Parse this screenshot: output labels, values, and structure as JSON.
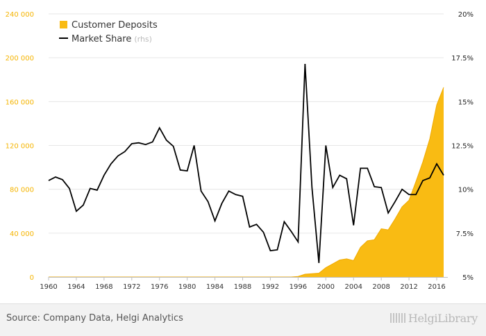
{
  "chart_data": {
    "type": "area+line",
    "title": "",
    "xlabel": "",
    "ylabel": "",
    "x": [
      1960,
      1961,
      1962,
      1963,
      1964,
      1965,
      1966,
      1967,
      1968,
      1969,
      1970,
      1971,
      1972,
      1973,
      1974,
      1975,
      1976,
      1977,
      1978,
      1979,
      1980,
      1981,
      1982,
      1983,
      1984,
      1985,
      1986,
      1987,
      1988,
      1989,
      1990,
      1991,
      1992,
      1993,
      1994,
      1995,
      1996,
      1997,
      1998,
      1999,
      2000,
      2001,
      2002,
      2003,
      2004,
      2005,
      2006,
      2007,
      2008,
      2009,
      2010,
      2011,
      2012,
      2013,
      2014,
      2015,
      2016,
      2017
    ],
    "x_ticks": [
      "1960",
      "1964",
      "1968",
      "1972",
      "1976",
      "1980",
      "1984",
      "1988",
      "1992",
      "1996",
      "2000",
      "2004",
      "2008",
      "2012",
      "2016"
    ],
    "y_left": {
      "ticks": [
        "0",
        "40 000",
        "80 000",
        "120 000",
        "160 000",
        "200 000",
        "240 000"
      ],
      "range": [
        0,
        240000
      ],
      "color": "#f5b400"
    },
    "y_right": {
      "ticks": [
        "5%",
        "7.5%",
        "10%",
        "12.5%",
        "15%",
        "17.5%",
        "20%"
      ],
      "range": [
        5,
        20
      ],
      "unit": "%"
    },
    "series": [
      {
        "name": "Customer Deposits",
        "type": "area",
        "axis": "left",
        "color": "#f9bb13",
        "values": [
          0,
          0,
          0,
          0,
          0,
          0,
          0,
          0,
          0,
          0,
          0,
          0,
          0,
          0,
          0,
          0,
          0,
          0,
          0,
          0,
          0,
          0,
          0,
          0,
          0,
          0,
          0,
          0,
          0,
          0,
          0,
          0,
          0,
          0,
          0,
          0,
          500,
          2500,
          3000,
          3500,
          8500,
          12000,
          15500,
          16500,
          15000,
          27000,
          33000,
          34000,
          44000,
          43000,
          53000,
          64000,
          70000,
          87000,
          105000,
          126000,
          157000,
          173000
        ]
      },
      {
        "name": "Market Share",
        "legend_suffix": "(rhs)",
        "type": "line",
        "axis": "right",
        "color": "#000000",
        "values": [
          10.5,
          10.7,
          10.55,
          10.05,
          8.75,
          9.1,
          10.05,
          9.95,
          10.8,
          11.45,
          11.9,
          12.15,
          12.6,
          12.65,
          12.55,
          12.7,
          13.5,
          12.8,
          12.45,
          11.1,
          11.05,
          12.5,
          9.9,
          9.3,
          8.2,
          9.2,
          9.9,
          9.7,
          9.6,
          7.85,
          8.0,
          7.55,
          6.5,
          6.55,
          8.15,
          7.6,
          7.0,
          17.15,
          10.1,
          5.8,
          12.5,
          10.1,
          10.8,
          10.6,
          7.95,
          11.2,
          11.2,
          10.15,
          10.1,
          8.65,
          9.3,
          10.0,
          9.7,
          9.7,
          10.5,
          10.65,
          11.45,
          10.8
        ]
      }
    ],
    "legend": {
      "placement": "top-left"
    },
    "grid": {
      "horizontal": true,
      "vertical": false
    }
  },
  "footer": {
    "source": "Source: Company Data, Helgi Analytics",
    "brand": "HelgiLibrary"
  }
}
